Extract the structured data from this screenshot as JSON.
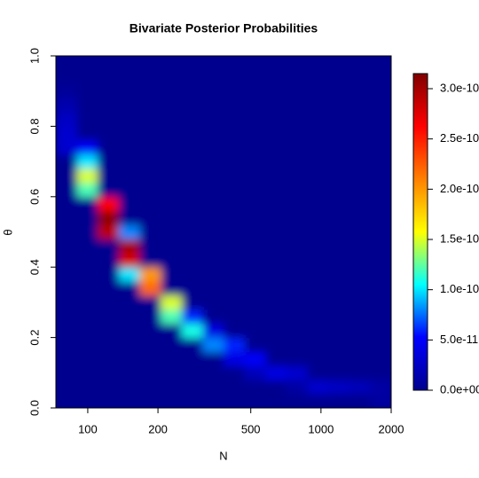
{
  "chart_data": {
    "type": "heatmap",
    "title": "Bivariate Posterior Probabilities",
    "xlabel": "N",
    "ylabel": "θ",
    "xlog": true,
    "xlim": [
      73,
      2000
    ],
    "xticks": [
      100,
      200,
      500,
      1000,
      2000
    ],
    "ylim": [
      0,
      1
    ],
    "yticks": [
      {
        "value": 0,
        "label": "0.0"
      },
      {
        "value": 0.2,
        "label": "0.2"
      },
      {
        "value": 0.4,
        "label": "0.4"
      },
      {
        "value": 0.6,
        "label": "0.6"
      },
      {
        "value": 0.8,
        "label": "0.8"
      },
      {
        "value": 1,
        "label": "1.0"
      }
    ],
    "x_bins": [
      73,
      90,
      110,
      136,
      167,
      206,
      253,
      311,
      383,
      471,
      579,
      712,
      876,
      1077,
      1325,
      1630,
      2000
    ],
    "y_bins": [
      0,
      0.04,
      0.08,
      0.12,
      0.16,
      0.2,
      0.24,
      0.28,
      0.32,
      0.36,
      0.4,
      0.44,
      0.48,
      0.52,
      0.56,
      0.6,
      0.64,
      0.68,
      0.72,
      0.76,
      0.8,
      0.84,
      0.88,
      0.92,
      0.96,
      1
    ],
    "z": [
      [
        0,
        0,
        0,
        0,
        0,
        0,
        0,
        0,
        0,
        0,
        0,
        0,
        0,
        0,
        0,
        8e-12
      ],
      [
        0,
        0,
        0,
        0,
        0,
        0,
        0,
        0,
        0,
        0,
        0,
        1e-11,
        3e-11,
        2.5e-11,
        2e-11,
        1e-11
      ],
      [
        0,
        0,
        0,
        0,
        0,
        0,
        0,
        0,
        0,
        2e-11,
        4e-11,
        3e-11,
        0,
        0,
        0,
        0
      ],
      [
        0,
        0,
        0,
        0,
        0,
        0,
        0,
        0,
        4e-11,
        5e-11,
        0,
        0,
        0,
        0,
        0,
        0
      ],
      [
        0,
        0,
        0,
        0,
        0,
        0,
        0,
        8e-11,
        6e-11,
        0,
        0,
        0,
        0,
        0,
        0,
        0
      ],
      [
        0,
        0,
        0,
        0,
        0,
        0,
        1.1e-10,
        4e-11,
        0,
        0,
        0,
        0,
        0,
        0,
        0,
        0
      ],
      [
        0,
        0,
        0,
        0,
        0,
        1.2e-10,
        6e-11,
        0,
        0,
        0,
        0,
        0,
        0,
        0,
        0,
        0
      ],
      [
        0,
        0,
        0,
        0,
        0,
        1.5e-10,
        0,
        0,
        0,
        0,
        0,
        0,
        0,
        0,
        0,
        0
      ],
      [
        0,
        0,
        0,
        0,
        2.2e-10,
        0,
        0,
        0,
        0,
        0,
        0,
        0,
        0,
        0,
        0,
        0
      ],
      [
        0,
        0,
        0,
        1e-10,
        2e-10,
        0,
        0,
        0,
        0,
        0,
        0,
        0,
        0,
        0,
        0,
        0
      ],
      [
        0,
        0,
        0,
        2.8e-10,
        0,
        0,
        0,
        0,
        0,
        0,
        0,
        0,
        0,
        0,
        0,
        0
      ],
      [
        0,
        0,
        0,
        3e-10,
        0,
        0,
        0,
        0,
        0,
        0,
        0,
        0,
        0,
        0,
        0,
        0
      ],
      [
        0,
        0,
        2.9e-10,
        8e-11,
        0,
        0,
        0,
        0,
        0,
        0,
        0,
        0,
        0,
        0,
        0,
        0
      ],
      [
        0,
        0,
        3.1e-10,
        0,
        0,
        0,
        0,
        0,
        0,
        0,
        0,
        0,
        0,
        0,
        0,
        0
      ],
      [
        0,
        0,
        2.6e-10,
        0,
        0,
        0,
        0,
        0,
        0,
        0,
        0,
        0,
        0,
        0,
        0,
        0
      ],
      [
        0,
        1.2e-10,
        0,
        0,
        0,
        0,
        0,
        0,
        0,
        0,
        0,
        0,
        0,
        0,
        0,
        0
      ],
      [
        0,
        1.5e-10,
        0,
        0,
        0,
        0,
        0,
        0,
        0,
        0,
        0,
        0,
        0,
        0,
        0,
        0
      ],
      [
        0,
        1e-10,
        0,
        0,
        0,
        0,
        0,
        0,
        0,
        0,
        0,
        0,
        0,
        0,
        0,
        0
      ],
      [
        3e-11,
        5e-11,
        0,
        0,
        0,
        0,
        0,
        0,
        0,
        0,
        0,
        0,
        0,
        0,
        0,
        0
      ],
      [
        3e-11,
        0,
        0,
        0,
        0,
        0,
        0,
        0,
        0,
        0,
        0,
        0,
        0,
        0,
        0,
        0
      ],
      [
        2.5e-11,
        0,
        0,
        0,
        0,
        0,
        0,
        0,
        0,
        0,
        0,
        0,
        0,
        0,
        0,
        0
      ],
      [
        1.5e-11,
        0,
        0,
        0,
        0,
        0,
        0,
        0,
        0,
        0,
        0,
        0,
        0,
        0,
        0,
        0
      ],
      [
        5e-12,
        0,
        0,
        0,
        0,
        0,
        0,
        0,
        0,
        0,
        0,
        0,
        0,
        0,
        0,
        0
      ],
      [
        0,
        0,
        0,
        0,
        0,
        0,
        0,
        0,
        0,
        0,
        0,
        0,
        0,
        0,
        0,
        0
      ],
      [
        0,
        0,
        0,
        0,
        0,
        0,
        0,
        0,
        0,
        0,
        0,
        0,
        0,
        0,
        0,
        0
      ]
    ],
    "colors": [
      "#00008f",
      "#0000ff",
      "#00ffff",
      "#ffff00",
      "#ff8000",
      "#ff0000",
      "#800000"
    ],
    "clim": [
      0,
      3.15e-10
    ],
    "cticks": [
      {
        "value": 0,
        "label": "0.0e+00"
      },
      {
        "value": 5e-11,
        "label": "5.0e-11"
      },
      {
        "value": 1e-10,
        "label": "1.0e-10"
      },
      {
        "value": 1.5e-10,
        "label": "1.5e-10"
      },
      {
        "value": 2e-10,
        "label": "2.0e-10"
      },
      {
        "value": 2.5e-10,
        "label": "2.5e-10"
      },
      {
        "value": 3e-10,
        "label": "3.0e-10"
      }
    ]
  }
}
